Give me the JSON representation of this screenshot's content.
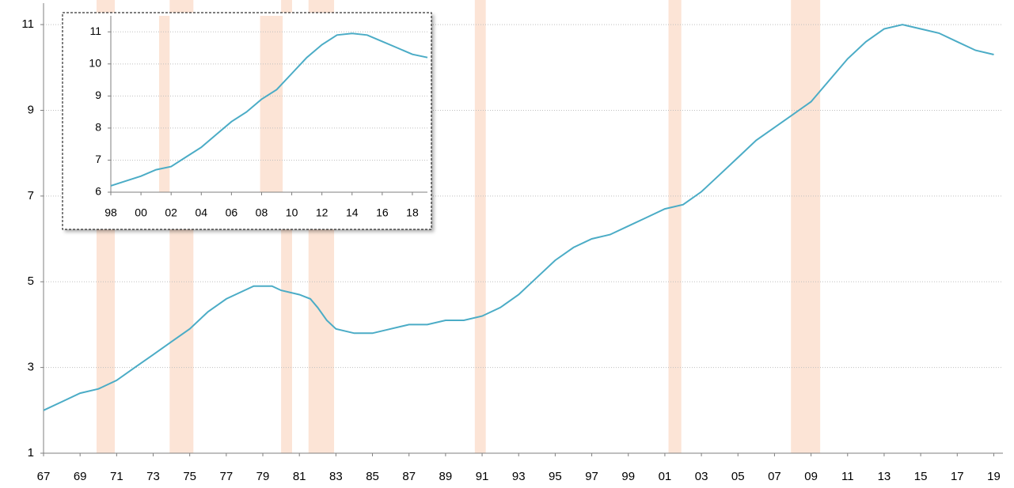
{
  "chart_data": [
    {
      "type": "line",
      "x": [
        1967,
        1968,
        1969,
        1970,
        1971,
        1972,
        1973,
        1974,
        1975,
        1976,
        1977,
        1978,
        1978.5,
        1979.5,
        1980,
        1981,
        1981.6,
        1982,
        1982.5,
        1983,
        1984,
        1985,
        1986,
        1987,
        1988,
        1989,
        1990,
        1991,
        1992,
        1993,
        1994,
        1995,
        1996,
        1997,
        1998,
        1999,
        2000,
        2001,
        2002,
        2003,
        2004,
        2005,
        2006,
        2007,
        2008,
        2009,
        2010,
        2011,
        2012,
        2013,
        2014,
        2015,
        2016,
        2017,
        2018,
        2019
      ],
      "series": [
        {
          "color": "#4bacc6",
          "values": [
            2.0,
            2.2,
            2.4,
            2.5,
            2.7,
            3.0,
            3.3,
            3.6,
            3.9,
            4.3,
            4.6,
            4.8,
            4.9,
            4.9,
            4.8,
            4.7,
            4.6,
            4.4,
            4.1,
            3.9,
            3.8,
            3.8,
            3.9,
            4.0,
            4.0,
            4.1,
            4.1,
            4.2,
            4.4,
            4.7,
            5.1,
            5.5,
            5.8,
            6.0,
            6.1,
            6.3,
            6.5,
            6.7,
            6.8,
            7.1,
            7.5,
            7.9,
            8.3,
            8.6,
            8.9,
            9.2,
            9.7,
            10.2,
            10.6,
            10.9,
            11.0,
            10.9,
            10.8,
            10.6,
            10.4,
            10.3
          ]
        }
      ],
      "recessions": {
        "color": "#fce4d6",
        "ranges": [
          [
            1969.9,
            1970.9
          ],
          [
            1973.9,
            1975.2
          ],
          [
            1980.0,
            1980.6
          ],
          [
            1981.5,
            1982.9
          ],
          [
            1990.6,
            1991.2
          ],
          [
            2001.2,
            2001.9
          ],
          [
            2007.9,
            2009.5
          ]
        ]
      },
      "xlim": [
        1967,
        2019.5
      ],
      "xticks": [
        {
          "value": 1967,
          "label": "67"
        },
        {
          "value": 1969,
          "label": "69"
        },
        {
          "value": 1971,
          "label": "71"
        },
        {
          "value": 1973,
          "label": "73"
        },
        {
          "value": 1975,
          "label": "75"
        },
        {
          "value": 1977,
          "label": "77"
        },
        {
          "value": 1979,
          "label": "79"
        },
        {
          "value": 1981,
          "label": "81"
        },
        {
          "value": 1983,
          "label": "83"
        },
        {
          "value": 1985,
          "label": "85"
        },
        {
          "value": 1987,
          "label": "87"
        },
        {
          "value": 1989,
          "label": "89"
        },
        {
          "value": 1991,
          "label": "91"
        },
        {
          "value": 1993,
          "label": "93"
        },
        {
          "value": 1995,
          "label": "95"
        },
        {
          "value": 1997,
          "label": "97"
        },
        {
          "value": 1999,
          "label": "99"
        },
        {
          "value": 2001,
          "label": "01"
        },
        {
          "value": 2003,
          "label": "03"
        },
        {
          "value": 2005,
          "label": "05"
        },
        {
          "value": 2007,
          "label": "07"
        },
        {
          "value": 2009,
          "label": "09"
        },
        {
          "value": 2011,
          "label": "11"
        },
        {
          "value": 2013,
          "label": "13"
        },
        {
          "value": 2015,
          "label": "15"
        },
        {
          "value": 2017,
          "label": "17"
        },
        {
          "value": 2019,
          "label": "19"
        }
      ],
      "ylim": [
        1,
        11.5
      ],
      "yticks": [
        1,
        3,
        5,
        7,
        9,
        11
      ],
      "grid": true
    },
    {
      "type": "line",
      "x": [
        1998,
        1999,
        2000,
        2001,
        2002,
        2003,
        2004,
        2005,
        2006,
        2007,
        2008,
        2009,
        2010,
        2011,
        2012,
        2013,
        2014,
        2015,
        2016,
        2017,
        2018,
        2019
      ],
      "series": [
        {
          "color": "#4bacc6",
          "values": [
            6.2,
            6.35,
            6.5,
            6.7,
            6.8,
            7.1,
            7.4,
            7.8,
            8.2,
            8.5,
            8.9,
            9.2,
            9.7,
            10.2,
            10.6,
            10.9,
            10.95,
            10.9,
            10.7,
            10.5,
            10.3,
            10.2
          ]
        }
      ],
      "recessions": {
        "color": "#fce4d6",
        "ranges": [
          [
            2001.2,
            2001.9
          ],
          [
            2007.9,
            2009.4
          ]
        ]
      },
      "xlim": [
        1998,
        2019
      ],
      "xticks": [
        {
          "value": 1998,
          "label": "98"
        },
        {
          "value": 2000,
          "label": "00"
        },
        {
          "value": 2002,
          "label": "02"
        },
        {
          "value": 2004,
          "label": "04"
        },
        {
          "value": 2006,
          "label": "06"
        },
        {
          "value": 2008,
          "label": "08"
        },
        {
          "value": 2010,
          "label": "10"
        },
        {
          "value": 2012,
          "label": "12"
        },
        {
          "value": 2014,
          "label": "14"
        },
        {
          "value": 2016,
          "label": "16"
        },
        {
          "value": 2018,
          "label": "18"
        }
      ],
      "ylim": [
        6,
        11.5
      ],
      "yticks": [
        6,
        7,
        8,
        9,
        10,
        11
      ],
      "grid": true
    }
  ]
}
